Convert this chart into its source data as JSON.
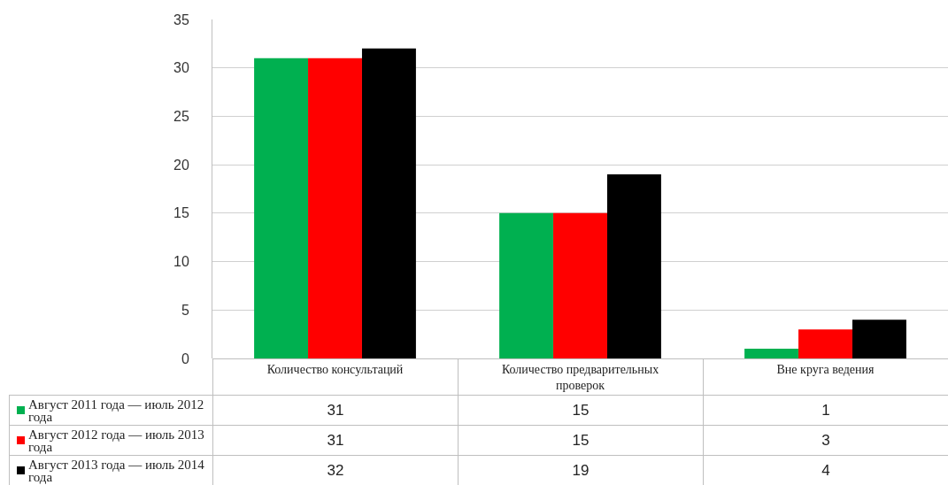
{
  "chart_data": {
    "type": "bar",
    "categories": [
      "Количество консультаций",
      "Количество предварительных проверок",
      "Вне круга ведения"
    ],
    "series": [
      {
        "name": "Август 2011 года — июль 2012 года",
        "color": "#00b050",
        "values": [
          31,
          15,
          1
        ]
      },
      {
        "name": "Август 2012 года — июль 2013 года",
        "color": "#ff0000",
        "values": [
          31,
          15,
          3
        ]
      },
      {
        "name": "Август 2013 года — июль 2014 года",
        "color": "#000000",
        "values": [
          32,
          19,
          4
        ]
      }
    ],
    "ylim": [
      0,
      35
    ],
    "yticks": [
      0,
      5,
      10,
      15,
      20,
      25,
      30,
      35
    ],
    "grid": "y",
    "legend": "bottom left",
    "data_labels": true
  }
}
